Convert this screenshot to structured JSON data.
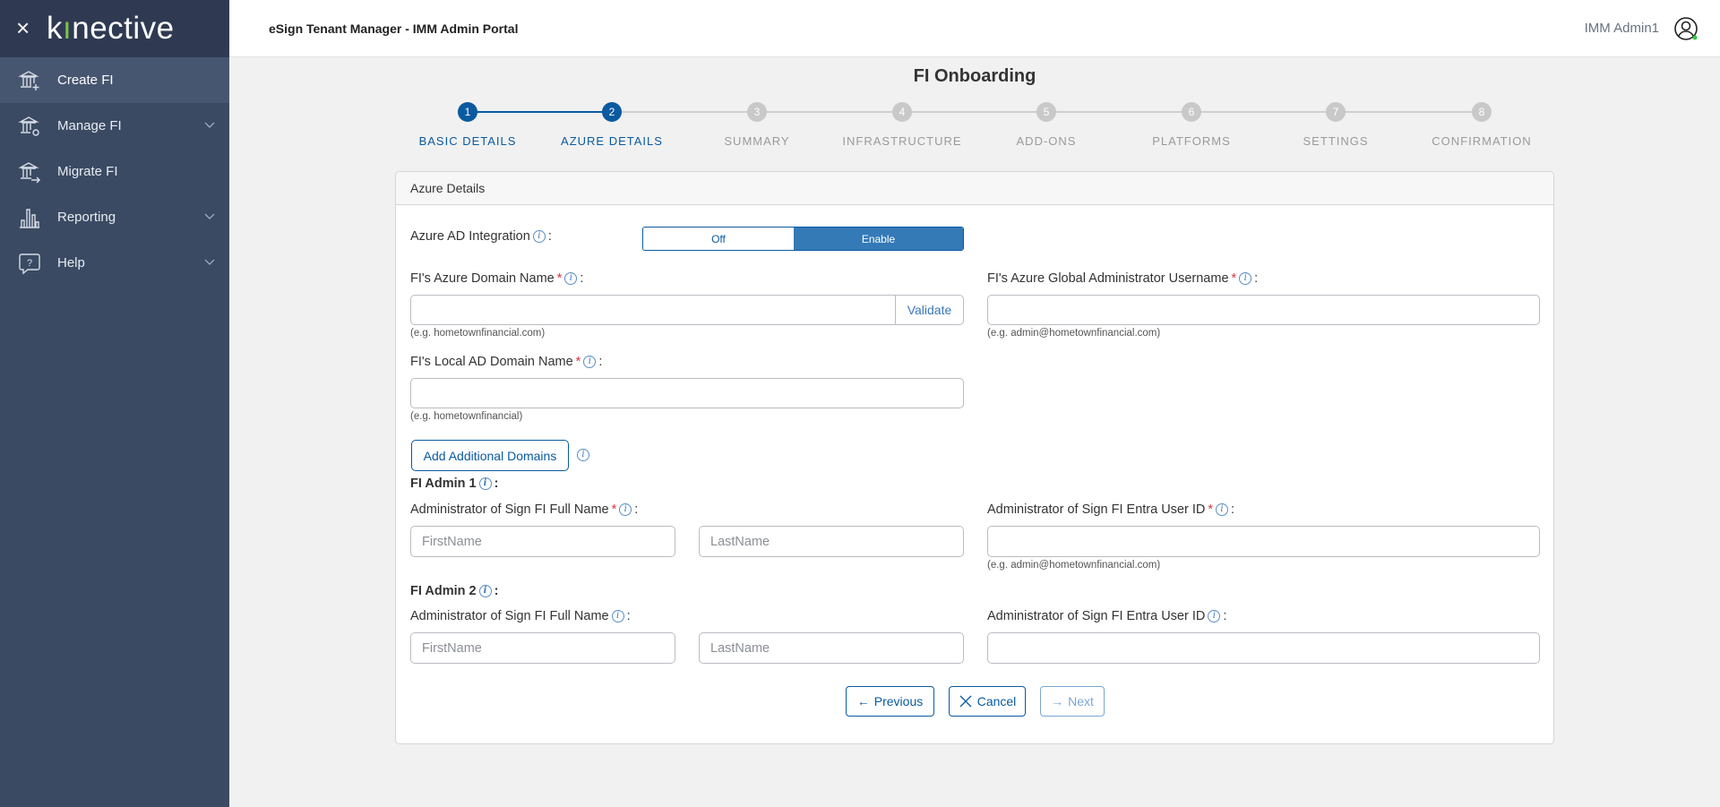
{
  "sidebar": {
    "logo_text": "kinective",
    "close_icon": "close-icon",
    "items": [
      {
        "label": "Create FI",
        "icon": "bank-plus-icon",
        "active": true
      },
      {
        "label": "Manage FI",
        "icon": "bank-gear-icon",
        "expandable": true
      },
      {
        "label": "Migrate FI",
        "icon": "bank-arrow-icon"
      },
      {
        "label": "Reporting",
        "icon": "bar-chart-icon",
        "expandable": true
      },
      {
        "label": "Help",
        "icon": "help-bubble-icon",
        "expandable": true
      }
    ]
  },
  "header": {
    "title": "eSign Tenant Manager - IMM Admin Portal",
    "user": "IMM Admin1",
    "status_color": "#2ecc40"
  },
  "page": {
    "title": "FI Onboarding"
  },
  "stepper": {
    "current": 2,
    "steps": [
      {
        "num": "1",
        "label": "BASIC DETAILS"
      },
      {
        "num": "2",
        "label": "AZURE DETAILS"
      },
      {
        "num": "3",
        "label": "SUMMARY"
      },
      {
        "num": "4",
        "label": "INFRASTRUCTURE"
      },
      {
        "num": "5",
        "label": "ADD-ONS"
      },
      {
        "num": "6",
        "label": "PLATFORMS"
      },
      {
        "num": "7",
        "label": "SETTINGS"
      },
      {
        "num": "8",
        "label": "CONFIRMATION"
      }
    ]
  },
  "card": {
    "title": "Azure Details",
    "azure_ad": {
      "label": "Azure AD Integration",
      "colon": ":",
      "off": "Off",
      "on": "Enable",
      "selected": "Enable"
    },
    "azure_domain": {
      "label": "FI's Azure Domain Name",
      "value": "",
      "validate": "Validate",
      "hint": "(e.g. hometownfinancial.com)"
    },
    "global_admin": {
      "label": "FI's Azure Global Administrator Username",
      "value": "",
      "hint": "(e.g. admin@hometownfinancial.com)"
    },
    "local_domain": {
      "label": "FI's Local AD Domain Name",
      "value": "",
      "hint": "(e.g. hometownfinancial)"
    },
    "add_domains": "Add Additional Domains",
    "admin1": {
      "title": "FI Admin 1",
      "name_label": "Administrator of Sign FI Full Name",
      "first_placeholder": "FirstName",
      "last_placeholder": "LastName",
      "id_label": "Administrator of Sign FI Entra User ID",
      "id_hint": "(e.g. admin@hometownfinancial.com)"
    },
    "admin2": {
      "title": "FI Admin 2",
      "name_label": "Administrator of Sign FI Full Name",
      "first_placeholder": "FirstName",
      "last_placeholder": "LastName",
      "id_label": "Administrator of Sign FI Entra User ID"
    },
    "required_mark": "*",
    "colon": ":",
    "info_glyph": "i"
  },
  "actions": {
    "previous": "Previous",
    "cancel": "Cancel",
    "next": "Next"
  },
  "colors": {
    "primary": "#0a5aa0",
    "toggle_on": "#337ab7",
    "sidebar": "#3a4a63",
    "sidebar_top": "#2f3a52"
  }
}
